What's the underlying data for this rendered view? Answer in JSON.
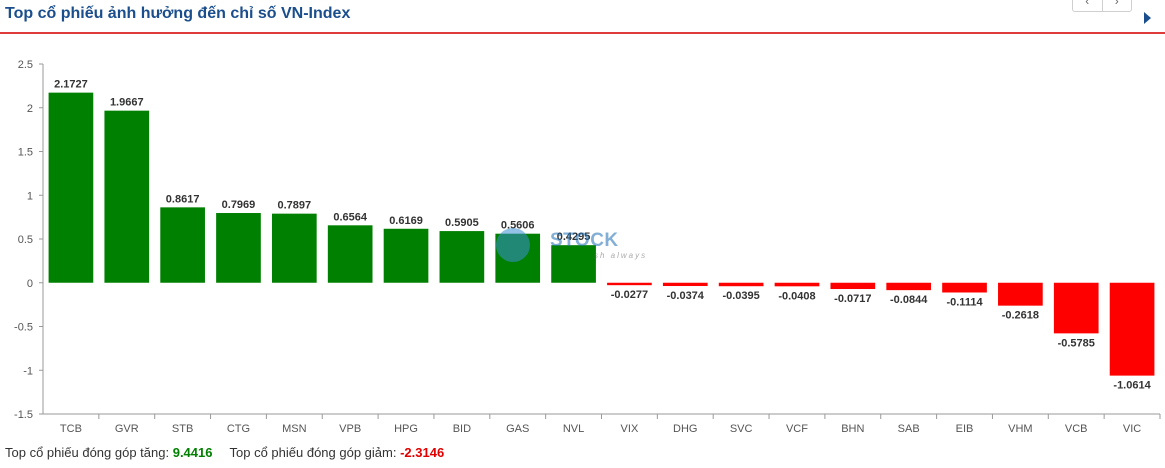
{
  "header": {
    "title": "Top cổ phiếu ảnh hưởng đến chỉ số VN-Index",
    "prev_label": "‹",
    "next_label": "›"
  },
  "watermark": {
    "brand": "STOCK",
    "tagline": "sh always"
  },
  "footer": {
    "up_label": "Top cổ phiếu đóng góp tăng:",
    "up_value": "9.4416",
    "down_label": "Top cổ phiếu đóng góp giảm:",
    "down_value": "-2.3146"
  },
  "colors": {
    "positive": "#008000",
    "negative": "#ff0000",
    "title": "#1a4e8c",
    "accent_line": "#e03b3b"
  },
  "chart_data": {
    "type": "bar",
    "categories": [
      "TCB",
      "GVR",
      "STB",
      "CTG",
      "MSN",
      "VPB",
      "HPG",
      "BID",
      "GAS",
      "NVL",
      "VIX",
      "DHG",
      "SVC",
      "VCF",
      "BHN",
      "SAB",
      "EIB",
      "VHM",
      "VCB",
      "VIC"
    ],
    "values": [
      2.1727,
      1.9667,
      0.8617,
      0.7969,
      0.7897,
      0.6564,
      0.6169,
      0.5905,
      0.5606,
      0.4295,
      -0.0277,
      -0.0374,
      -0.0395,
      -0.0408,
      -0.0717,
      -0.0844,
      -0.1114,
      -0.2618,
      -0.5785,
      -1.0614
    ],
    "value_labels": [
      "2.1727",
      "1.9667",
      "0.8617",
      "0.7969",
      "0.7897",
      "0.6564",
      "0.6169",
      "0.5905",
      "0.5606",
      "0.4295",
      "-0.0277",
      "-0.0374",
      "-0.0395",
      "-0.0408",
      "-0.0717",
      "-0.0844",
      "-0.1114",
      "-0.2618",
      "-0.5785",
      "-1.0614"
    ],
    "yticks": [
      "2.5",
      "2",
      "1.5",
      "1",
      "0.5",
      "0",
      "-0.5",
      "-1",
      "-1.5"
    ],
    "ylim": [
      -1.5,
      2.5
    ],
    "grid": false,
    "legend": "none"
  }
}
